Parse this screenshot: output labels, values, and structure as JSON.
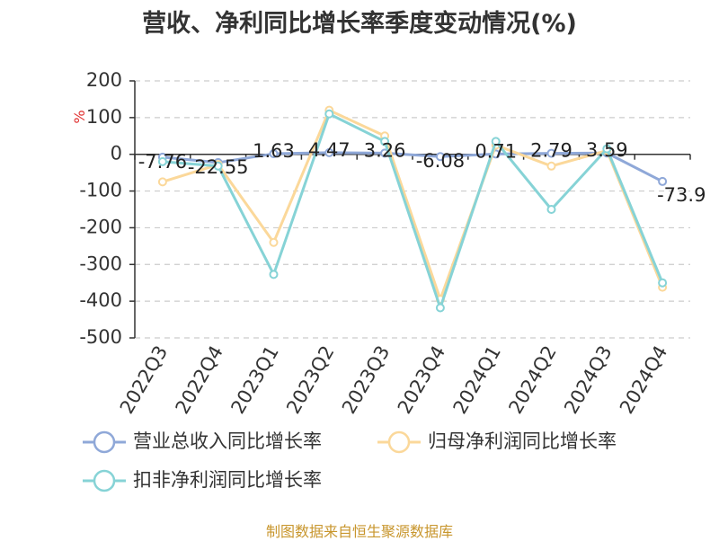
{
  "title": "营收、净利同比增长率季度变动情况(%)",
  "source": "制图数据来自恒生聚源数据库",
  "chart_data": {
    "type": "line",
    "ylabel": "%",
    "ylim": [
      -500,
      200
    ],
    "yticks": [
      200,
      100,
      0,
      -100,
      -200,
      -300,
      -400,
      -500
    ],
    "grid": true,
    "legend_position": "bottom",
    "categories": [
      "2022Q3",
      "2022Q4",
      "2023Q1",
      "2023Q2",
      "2023Q3",
      "2023Q4",
      "2024Q1",
      "2024Q2",
      "2024Q3",
      "2024Q4"
    ],
    "series": [
      {
        "name": "营业总收入同比增长率",
        "color": "#8fa8d8",
        "values": [
          -7.76,
          -22.55,
          1.63,
          4.47,
          3.26,
          -6.08,
          0.71,
          2.79,
          3.59,
          -73.9
        ],
        "labels": [
          "-7.76",
          "-22.55",
          "1.63",
          "4.47",
          "3.26",
          "-6.08",
          "0.71",
          "2.79",
          "3.59",
          "-73.9"
        ]
      },
      {
        "name": "归母净利润同比增长率",
        "color": "#fbd89a",
        "values": [
          -75,
          -28,
          -240,
          120,
          50,
          -395,
          25,
          -32,
          10,
          -362
        ]
      },
      {
        "name": "扣非净利润同比增长率",
        "color": "#86d3d6",
        "values": [
          -20,
          -32,
          -327,
          110,
          35,
          -418,
          35,
          -150,
          15,
          -350
        ]
      }
    ]
  }
}
